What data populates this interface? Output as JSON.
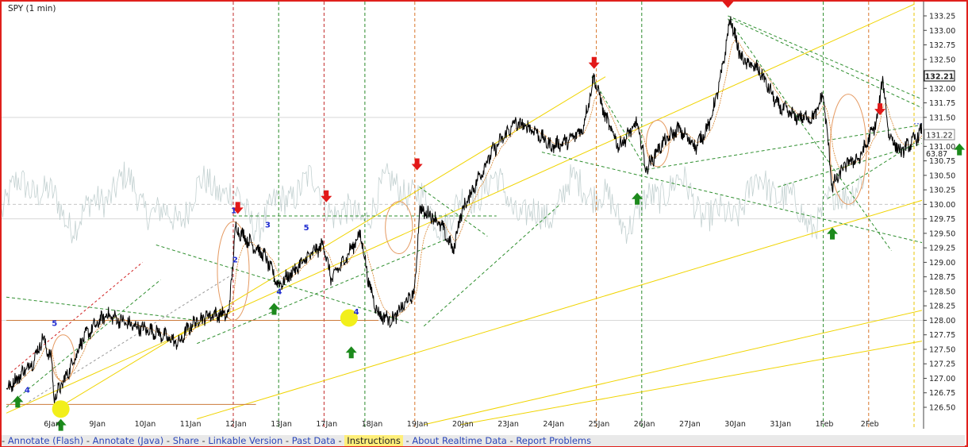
{
  "chart_data": {
    "type": "line",
    "title": "SPY (1 min)",
    "y_ticks": [
      126.5,
      126.75,
      127.0,
      127.25,
      127.5,
      127.75,
      128.0,
      128.25,
      128.5,
      128.75,
      129.0,
      129.25,
      129.5,
      129.75,
      130.0,
      130.25,
      130.5,
      130.75,
      131.0,
      131.25,
      131.5,
      131.75,
      132.0,
      132.25,
      132.5,
      132.75,
      133.0,
      133.25
    ],
    "y_tick_labels": [
      "126.50",
      "126.75",
      "127.00",
      "127.25",
      "127.50",
      "127.75",
      "128.00",
      "128.25",
      "128.50",
      "128.75",
      "129.00",
      "129.25",
      "129.50",
      "129.75",
      "130.00",
      "130.25",
      "130.50",
      "130.75",
      "131.00",
      "131.25",
      "131.50",
      "131.75",
      "132.00",
      "132.25",
      "132.50",
      "132.75",
      "133.00",
      "133.25"
    ],
    "ylim": [
      126.3,
      133.45
    ],
    "x_categories": [
      "6Jan",
      "9Jan",
      "10Jan",
      "11Jan",
      "12Jan",
      "13Jan",
      "17Jan",
      "18Jan",
      "19Jan",
      "20Jan",
      "23Jan",
      "24Jan",
      "25Jan",
      "26Jan",
      "27Jan",
      "30Jan",
      "31Jan",
      "1Feb",
      "2Feb"
    ],
    "price_label": "132.21",
    "price_value": 132.21,
    "second_label": "131.22",
    "second_value": 131.22,
    "indicator_label": "63.87",
    "indicator_value": 131.02,
    "price_series": {
      "name": "SPY",
      "anchors_by_day": [
        [
          0,
          126.8
        ],
        [
          0.6,
          127.3
        ],
        [
          0.8,
          127.7
        ],
        [
          1.0,
          127.3
        ],
        [
          1.05,
          126.65
        ],
        [
          1.3,
          127.0
        ],
        [
          1.7,
          127.7
        ],
        [
          2.2,
          128.1
        ],
        [
          2.8,
          127.9
        ],
        [
          3.3,
          127.8
        ],
        [
          3.8,
          127.6
        ],
        [
          4.0,
          127.85
        ],
        [
          4.2,
          128.0
        ],
        [
          4.5,
          128.1
        ],
        [
          4.9,
          128.1
        ],
        [
          5.05,
          129.6
        ],
        [
          5.3,
          129.4
        ],
        [
          5.7,
          129.1
        ],
        [
          6.0,
          128.6
        ],
        [
          6.4,
          128.9
        ],
        [
          6.8,
          129.2
        ],
        [
          7.0,
          129.3
        ],
        [
          7.15,
          128.7
        ],
        [
          7.5,
          129.1
        ],
        [
          7.8,
          129.5
        ],
        [
          8.0,
          128.6
        ],
        [
          8.2,
          128.1
        ],
        [
          8.5,
          128.0
        ],
        [
          8.8,
          128.3
        ],
        [
          9.0,
          128.5
        ],
        [
          9.1,
          129.9
        ],
        [
          9.4,
          129.8
        ],
        [
          9.6,
          129.6
        ],
        [
          9.85,
          129.2
        ],
        [
          10.0,
          129.8
        ],
        [
          10.3,
          130.3
        ],
        [
          10.7,
          130.9
        ],
        [
          11.2,
          131.4
        ],
        [
          11.6,
          131.3
        ],
        [
          12.0,
          131.0
        ],
        [
          12.4,
          131.1
        ],
        [
          12.7,
          131.3
        ],
        [
          12.95,
          132.2
        ],
        [
          13.2,
          131.5
        ],
        [
          13.5,
          131.0
        ],
        [
          13.9,
          131.4
        ],
        [
          14.1,
          130.6
        ],
        [
          14.4,
          131.0
        ],
        [
          14.8,
          131.3
        ],
        [
          15.2,
          131.0
        ],
        [
          15.5,
          131.4
        ],
        [
          15.75,
          132.2
        ],
        [
          15.95,
          133.2
        ],
        [
          16.2,
          132.5
        ],
        [
          16.6,
          132.3
        ],
        [
          17.0,
          131.7
        ],
        [
          17.4,
          131.5
        ],
        [
          17.8,
          131.5
        ],
        [
          18.0,
          131.9
        ],
        [
          18.2,
          130.3
        ],
        [
          18.5,
          130.7
        ],
        [
          18.8,
          130.8
        ],
        [
          19.05,
          131.2
        ],
        [
          19.2,
          131.5
        ],
        [
          19.3,
          132.2
        ],
        [
          19.45,
          131.2
        ],
        [
          19.7,
          130.9
        ],
        [
          20.0,
          131.1
        ],
        [
          20.2,
          131.3
        ],
        [
          20.4,
          131.2
        ]
      ],
      "last_print": [
        [
          20.55,
          132.45
        ],
        [
          20.6,
          132.2
        ]
      ]
    },
    "indicator_series": {
      "name": "63.87",
      "baseline": 130.05,
      "amplitude": 0.55
    },
    "markers": {
      "down_arrows": [
        [
          5.1,
          129.85
        ],
        [
          7.05,
          130.05
        ],
        [
          9.05,
          130.6
        ],
        [
          12.95,
          132.35
        ],
        [
          15.9,
          133.4
        ],
        [
          19.25,
          131.55
        ]
      ],
      "up_arrows": [
        [
          0.25,
          126.7
        ],
        [
          1.2,
          126.3
        ],
        [
          5.9,
          128.3
        ],
        [
          7.6,
          127.55
        ],
        [
          13.9,
          130.2
        ],
        [
          18.2,
          129.6
        ],
        [
          21.0,
          131.05
        ]
      ],
      "yellow_dots": [
        [
          1.2,
          126.47
        ],
        [
          7.55,
          128.04
        ]
      ],
      "wave_numbers": [
        [
          "4",
          0.4,
          126.75
        ],
        [
          "5",
          1.0,
          127.9
        ],
        [
          "1",
          4.95,
          129.85
        ],
        [
          "2",
          4.98,
          129.0
        ],
        [
          "3",
          5.7,
          129.6
        ],
        [
          "4",
          5.95,
          128.45
        ],
        [
          "5",
          6.55,
          129.55
        ],
        [
          "4",
          7.65,
          128.1
        ]
      ]
    },
    "annotations": {
      "vlines_red": [
        5.0,
        7.0
      ],
      "vlines_green": [
        6.0,
        7.9,
        14.0,
        18.0
      ],
      "vlines_orange": [
        9.0,
        13.0,
        19.0
      ],
      "vlines_yellow": [
        20.0
      ],
      "trend_green": [
        [
          [
            0,
            128.4
          ],
          [
            4.2,
            128.0
          ]
        ],
        [
          [
            0,
            126.5
          ],
          [
            3.4,
            128.7
          ]
        ],
        [
          [
            4.2,
            127.6
          ],
          [
            9.7,
            129.4
          ]
        ],
        [
          [
            3.3,
            129.3
          ],
          [
            8.9,
            127.95
          ]
        ],
        [
          [
            5.0,
            129.8
          ],
          [
            10.8,
            129.8
          ]
        ],
        [
          [
            9.1,
            130.3
          ],
          [
            10.6,
            129.45
          ]
        ],
        [
          [
            9.2,
            127.9
          ],
          [
            12.2,
            130.0
          ]
        ],
        [
          [
            15.9,
            133.25
          ],
          [
            22.0,
            131.2
          ]
        ],
        [
          [
            15.9,
            133.2
          ],
          [
            19.5,
            129.2
          ]
        ],
        [
          [
            12.9,
            132.2
          ],
          [
            14.1,
            130.6
          ]
        ],
        [
          [
            14.1,
            130.6
          ],
          [
            22.0,
            131.6
          ]
        ],
        [
          [
            11.8,
            130.9
          ],
          [
            22.0,
            129.0
          ]
        ],
        [
          [
            15.95,
            133.2
          ],
          [
            22.0,
            131.0
          ]
        ],
        [
          [
            17.0,
            130.3
          ],
          [
            22.5,
            131.6
          ]
        ],
        [
          [
            18.1,
            130.1
          ],
          [
            20.3,
            131.2
          ]
        ]
      ],
      "trend_yellow": [
        [
          [
            1.1,
            126.47
          ],
          [
            13.2,
            132.2
          ]
        ],
        [
          [
            0,
            126.4
          ],
          [
            20.0,
            133.45
          ]
        ],
        [
          [
            4.2,
            126.3
          ],
          [
            22.0,
            130.5
          ]
        ],
        [
          [
            9.2,
            126.2
          ],
          [
            22.0,
            128.5
          ]
        ],
        [
          [
            10.0,
            126.2
          ],
          [
            22.0,
            127.9
          ]
        ]
      ],
      "trend_red": [
        [
          [
            0.1,
            127.1
          ],
          [
            3.0,
            129.0
          ]
        ]
      ],
      "trend_gray": [
        [
          [
            0.5,
            126.6
          ],
          [
            5.0,
            128.8
          ]
        ]
      ],
      "trend_orange_h": [
        [
          [
            0,
            128.0
          ],
          [
            8.2,
            128.0
          ]
        ],
        [
          [
            0,
            126.55
          ],
          [
            5.5,
            126.55
          ]
        ]
      ],
      "blue_dotted": [
        [
          [
            20.0,
            131.39
          ],
          [
            21.3,
            131.39
          ]
        ]
      ],
      "ellipses": [
        [
          5.0,
          128.85,
          0.35,
          0.85
        ],
        [
          1.25,
          127.35,
          0.25,
          0.4
        ],
        [
          8.65,
          129.6,
          0.3,
          0.45
        ],
        [
          14.35,
          131.05,
          0.25,
          0.4
        ],
        [
          18.55,
          130.95,
          0.4,
          0.95
        ]
      ]
    }
  },
  "footer": {
    "links": [
      "Annotate (Flash)",
      "Annotate (Java)",
      "Share",
      "Linkable Version",
      "Past Data",
      "Instructions",
      "About Realtime Data",
      "Report Problems"
    ],
    "separator": "-",
    "highlighted_index": 5
  }
}
